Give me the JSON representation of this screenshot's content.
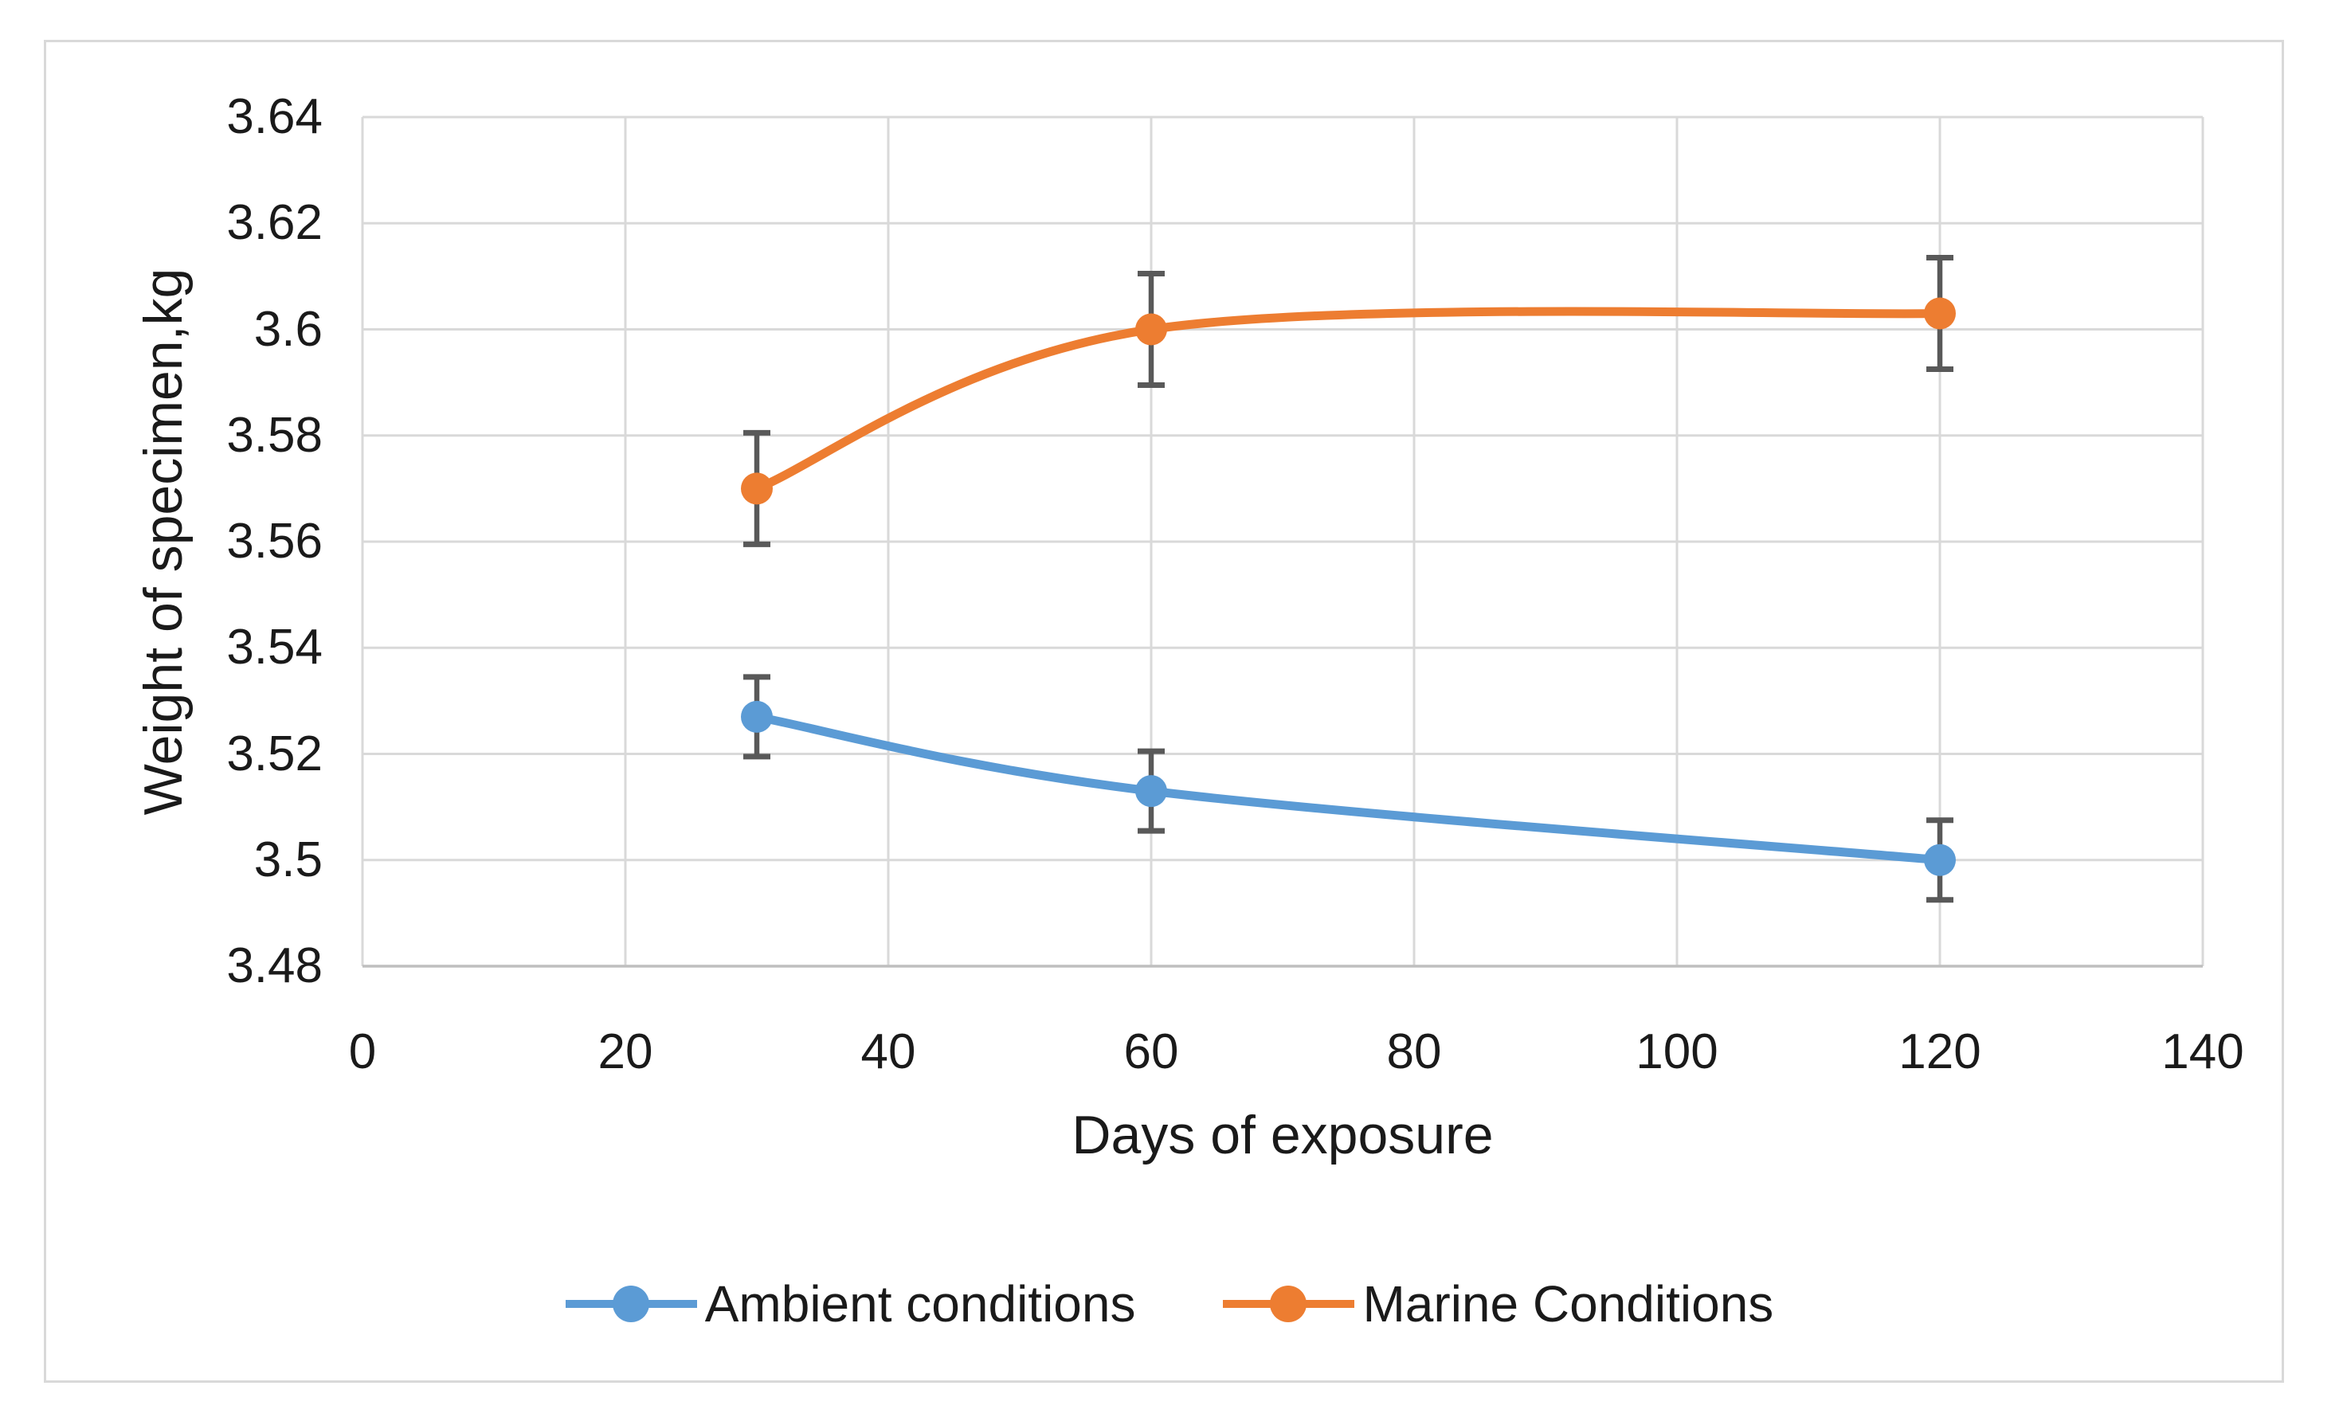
{
  "chart_data": {
    "type": "line",
    "title": "",
    "xlabel": "Days of exposure",
    "ylabel": "Weight of specimen,kg",
    "xlim": [
      0,
      140
    ],
    "ylim": [
      3.48,
      3.64
    ],
    "x_tick_step": 20,
    "y_tick_step": 0.02,
    "x_tick_labels": [
      "0",
      "20",
      "40",
      "60",
      "80",
      "100",
      "120",
      "140"
    ],
    "y_tick_labels": [
      "3.48",
      "3.5",
      "3.52",
      "3.54",
      "3.56",
      "3.58",
      "3.6",
      "3.62",
      "3.64"
    ],
    "grid": true,
    "legend_position": "bottom",
    "x": [
      30,
      60,
      120
    ],
    "series": [
      {
        "name": "Ambient conditions",
        "color": "#5B9BD5",
        "values": [
          3.527,
          3.513,
          3.5
        ],
        "error": 0.0075,
        "smooth": true,
        "marker": "circle"
      },
      {
        "name": "Marine Conditions",
        "color": "#ED7D31",
        "values": [
          3.57,
          3.6,
          3.603
        ],
        "error": 0.0105,
        "smooth": true,
        "marker": "circle"
      }
    ],
    "colors": {
      "gridline": "#D9D9D9",
      "axis_line": "#BFBFBF",
      "error_bar": "#595959",
      "text": "#1a1a1a",
      "background": "#ffffff",
      "figure_border": "#D9D9D9"
    }
  }
}
